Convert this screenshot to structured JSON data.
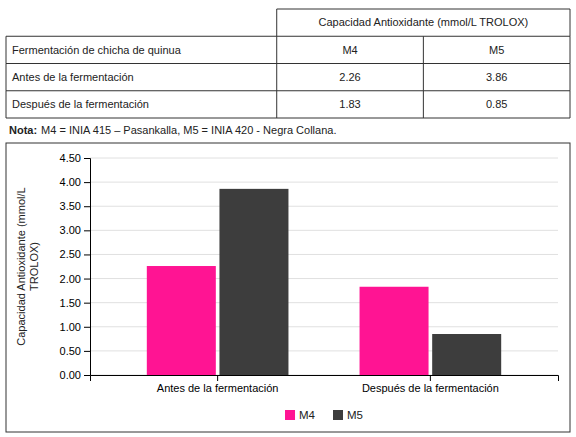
{
  "chart_data": {
    "type": "bar",
    "categories": [
      "Antes de la fermentación",
      "Después de la fermentación"
    ],
    "series": [
      {
        "name": "M4",
        "color": "#FF1493",
        "values": [
          2.26,
          1.83
        ]
      },
      {
        "name": "M5",
        "color": "#3d3d3d",
        "values": [
          3.86,
          0.85
        ]
      }
    ],
    "y_label": "Capacidad Antioxidante (mmol/L\nTROLOX)",
    "ylim": [
      0,
      4.5
    ],
    "yticks": [
      {
        "value": 0,
        "label": "0.00"
      },
      {
        "value": 0.5,
        "label": "0.50"
      },
      {
        "value": 1,
        "label": "1.00"
      },
      {
        "value": 1.5,
        "label": "1.50"
      },
      {
        "value": 2,
        "label": "2.00"
      },
      {
        "value": 2.5,
        "label": "2.50"
      },
      {
        "value": 3,
        "label": "3.00"
      },
      {
        "value": 3.5,
        "label": "3.50"
      },
      {
        "value": 4,
        "label": "4.00"
      },
      {
        "value": 4.5,
        "label": "4.50"
      }
    ],
    "grid": true,
    "legend": "bottom",
    "annotations": [
      "Nota:",
      "M4 = INIA 415 – Pasankalla, M5 = INIA 420 - Negra Collana."
    ]
  },
  "table": {
    "header": "Capacidad Antioxidante (mmol/L TROLOX)",
    "columns": [
      "Fermentación de chicha de quinua",
      "M4",
      "M5"
    ],
    "rows": [
      "Antes de la fermentación",
      "Después de la fermentación"
    ],
    "values": [
      [
        2.26,
        3.86
      ],
      [
        1.83,
        0.85
      ]
    ]
  }
}
